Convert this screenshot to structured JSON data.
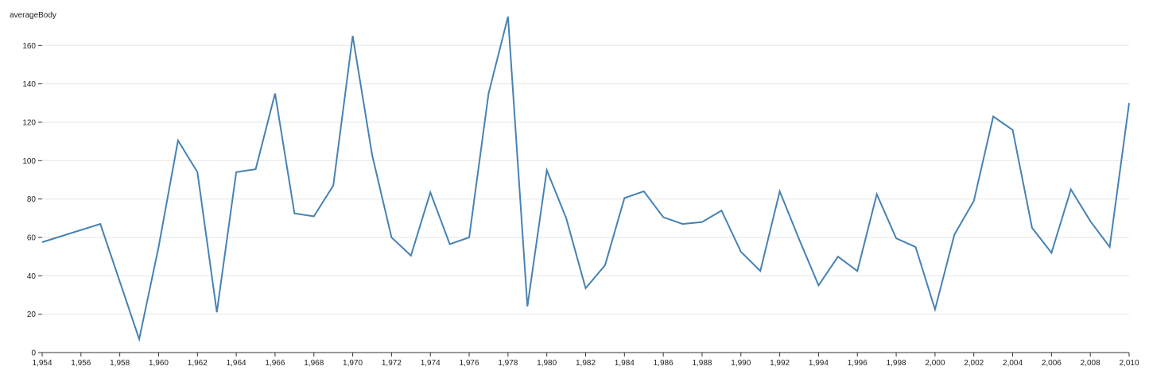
{
  "chart_data": {
    "type": "line",
    "title": "",
    "xlabel": "",
    "ylabel": "averageBody",
    "xlim": [
      1954,
      2010
    ],
    "ylim": [
      0,
      175
    ],
    "yticks": [
      0,
      20,
      40,
      60,
      80,
      100,
      120,
      140,
      160
    ],
    "xticks": [
      1954,
      1956,
      1958,
      1960,
      1962,
      1964,
      1966,
      1968,
      1970,
      1972,
      1974,
      1976,
      1978,
      1980,
      1982,
      1984,
      1986,
      1988,
      1990,
      1992,
      1994,
      1996,
      1998,
      2000,
      2002,
      2004,
      2006,
      2008,
      2010
    ],
    "xtick_labels": [
      "1,954",
      "1,956",
      "1,958",
      "1,960",
      "1,962",
      "1,964",
      "1,966",
      "1,968",
      "1,970",
      "1,972",
      "1,974",
      "1,976",
      "1,978",
      "1,980",
      "1,982",
      "1,984",
      "1,986",
      "1,988",
      "1,990",
      "1,992",
      "1,994",
      "1,996",
      "1,998",
      "2,000",
      "2,002",
      "2,004",
      "2,006",
      "2,008",
      "2,010"
    ],
    "grid": "horizontal",
    "line_color": "#4682b4",
    "series": [
      {
        "x": [
          1954,
          1957,
          1959,
          1960,
          1961,
          1962,
          1963,
          1964,
          1965,
          1966,
          1967,
          1968,
          1969,
          1970,
          1971,
          1972,
          1973,
          1974,
          1975,
          1976,
          1977,
          1978,
          1979,
          1980,
          1981,
          1982,
          1983,
          1984,
          1985,
          1986,
          1987,
          1988,
          1989,
          1990,
          1991,
          1992,
          1993,
          1994,
          1995,
          1996,
          1997,
          1998,
          1999,
          2000,
          2001,
          2002,
          2003,
          2004,
          2005,
          2006,
          2007,
          2008,
          2009,
          2010
        ],
        "values": [
          57.5,
          67,
          7,
          55,
          110.5,
          94,
          21,
          94,
          95.5,
          135,
          72.5,
          71,
          87,
          165,
          103,
          60,
          50.5,
          83.5,
          56.5,
          60,
          135,
          175,
          24,
          95,
          70,
          33.5,
          45.5,
          80.5,
          84,
          70.5,
          67,
          68,
          74,
          52.5,
          42.5,
          84,
          59,
          35,
          50,
          42.5,
          82.5,
          59.5,
          55,
          22.5,
          61.5,
          79,
          123,
          116,
          65,
          52,
          85,
          68.5,
          55,
          130
        ]
      }
    ]
  }
}
